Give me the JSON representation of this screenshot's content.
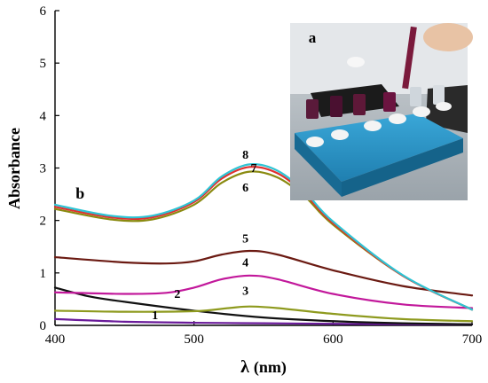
{
  "chart_data": {
    "type": "line",
    "xlabel_symbol": "λ",
    "xlabel_unit": "(nm)",
    "ylabel": "Absorbance",
    "xlim": [
      400,
      700
    ],
    "ylim": [
      0,
      6
    ],
    "x_ticks": [
      400,
      500,
      600,
      700
    ],
    "y_ticks": [
      0,
      1,
      2,
      3,
      4,
      5,
      6
    ],
    "grid": false,
    "panel_label": "b",
    "inset_label": "a",
    "series": [
      {
        "label": "1",
        "color": "#6a1b9a",
        "x": [
          400,
          450,
          500,
          550,
          600,
          650,
          700
        ],
        "y": [
          0.12,
          0.07,
          0.05,
          0.04,
          0.03,
          0.02,
          0.02
        ]
      },
      {
        "label": "2",
        "color": "#111111",
        "x": [
          400,
          425,
          450,
          500,
          550,
          600,
          650,
          700
        ],
        "y": [
          0.72,
          0.55,
          0.45,
          0.28,
          0.15,
          0.08,
          0.04,
          0.02
        ]
      },
      {
        "label": "3",
        "color": "#8e9a1e",
        "x": [
          400,
          450,
          500,
          525,
          540,
          560,
          600,
          650,
          700
        ],
        "y": [
          0.28,
          0.26,
          0.27,
          0.33,
          0.36,
          0.33,
          0.22,
          0.12,
          0.08
        ]
      },
      {
        "label": "4",
        "color": "#c2189b",
        "x": [
          400,
          450,
          480,
          500,
          520,
          540,
          560,
          600,
          650,
          700
        ],
        "y": [
          0.63,
          0.6,
          0.62,
          0.72,
          0.88,
          0.95,
          0.88,
          0.6,
          0.4,
          0.33
        ]
      },
      {
        "label": "5",
        "color": "#6b1a12",
        "x": [
          400,
          450,
          480,
          500,
          520,
          540,
          560,
          600,
          650,
          700
        ],
        "y": [
          1.3,
          1.2,
          1.18,
          1.22,
          1.35,
          1.42,
          1.35,
          1.05,
          0.75,
          0.57
        ]
      },
      {
        "label": "6",
        "color": "#8a8a10",
        "x": [
          400,
          440,
          470,
          500,
          520,
          540,
          560,
          580,
          600,
          650,
          700
        ],
        "y": [
          2.22,
          2.02,
          2.02,
          2.3,
          2.72,
          2.93,
          2.82,
          2.45,
          1.92,
          0.95,
          0.3
        ]
      },
      {
        "label": "7",
        "color": "#e03030",
        "x": [
          400,
          440,
          470,
          500,
          520,
          540,
          560,
          580,
          600,
          650,
          700
        ],
        "y": [
          2.26,
          2.06,
          2.06,
          2.35,
          2.8,
          3.02,
          2.9,
          2.5,
          1.95,
          0.95,
          0.3
        ]
      },
      {
        "label": "8",
        "color": "#2ec4d4",
        "x": [
          400,
          440,
          470,
          500,
          520,
          540,
          560,
          580,
          600,
          650,
          700
        ],
        "y": [
          2.3,
          2.09,
          2.09,
          2.38,
          2.84,
          3.07,
          2.95,
          2.54,
          1.98,
          0.96,
          0.3
        ]
      }
    ],
    "curve_label_positions": {
      "1": [
        472,
        0.12
      ],
      "2": [
        488,
        0.52
      ],
      "3": [
        537,
        0.58
      ],
      "4": [
        537,
        1.12
      ],
      "5": [
        537,
        1.58
      ],
      "6": [
        537,
        2.55
      ],
      "7": [
        543,
        2.92
      ],
      "8": [
        537,
        3.18
      ],
      "b": [
        418,
        2.42
      ]
    }
  }
}
